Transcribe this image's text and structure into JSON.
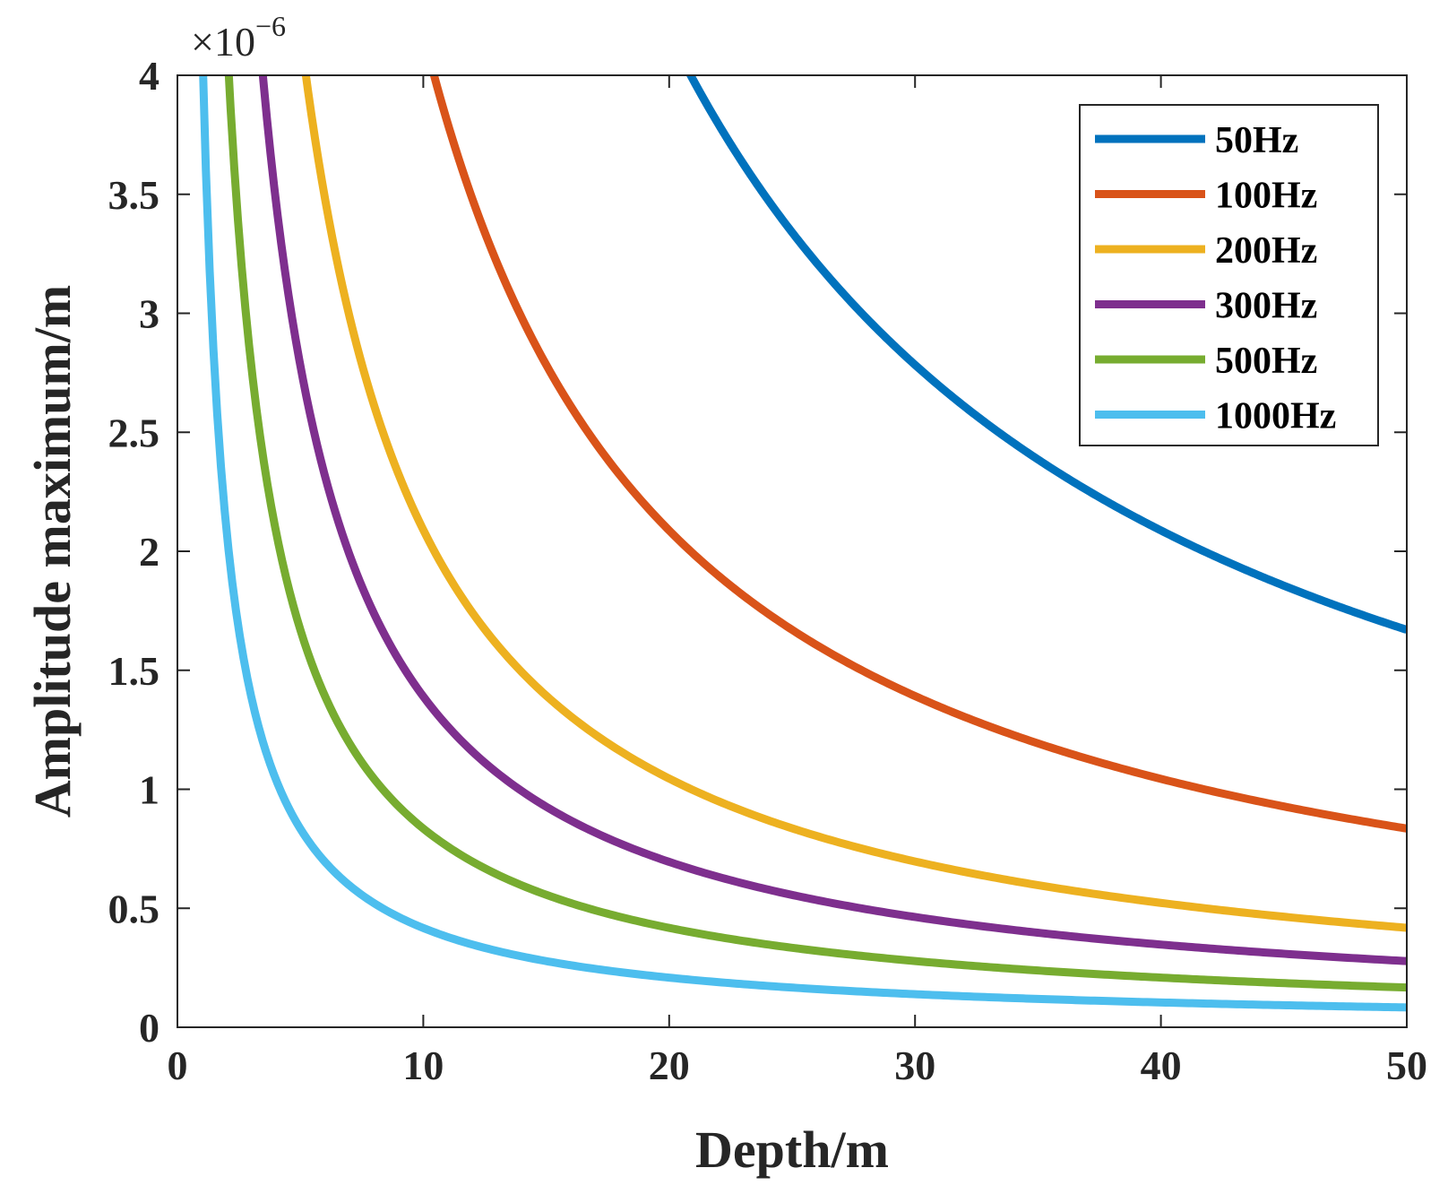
{
  "chart_data": {
    "type": "line",
    "title": "",
    "xlabel": "Depth/m",
    "ylabel": "Amplitude maximum/m",
    "xlim": [
      0,
      50
    ],
    "ylim": [
      0,
      4
    ],
    "y_multiplier_base": "×10",
    "y_multiplier_exponent": "−6",
    "x_ticks": [
      0,
      10,
      20,
      30,
      40,
      50
    ],
    "x_tick_labels": [
      "0",
      "10",
      "20",
      "30",
      "40",
      "50"
    ],
    "y_ticks": [
      0,
      0.5,
      1,
      1.5,
      2,
      2.5,
      3,
      3.5,
      4
    ],
    "y_tick_labels": [
      "0",
      "0.5",
      "1",
      "1.5",
      "2",
      "2.5",
      "3",
      "3.5",
      "4"
    ],
    "grid": false,
    "legend_position": "top-right",
    "model": "amplitude = k / depth (values in units of 1e-6 m)",
    "series": [
      {
        "name": "50Hz",
        "color": "#0072BD",
        "k": 83.5,
        "x": [
          21,
          25,
          30,
          35,
          40,
          45,
          50
        ],
        "values": [
          3.98,
          3.34,
          2.78,
          2.39,
          2.09,
          1.86,
          1.67
        ]
      },
      {
        "name": "100Hz",
        "color": "#D95319",
        "k": 41.75,
        "x": [
          10.5,
          15,
          20,
          25,
          30,
          35,
          40,
          45,
          50
        ],
        "values": [
          3.98,
          2.78,
          2.09,
          1.67,
          1.39,
          1.19,
          1.04,
          0.93,
          0.835
        ]
      },
      {
        "name": "200Hz",
        "color": "#EDB120",
        "k": 20.9,
        "x": [
          5.3,
          10,
          15,
          20,
          25,
          30,
          35,
          40,
          45,
          50
        ],
        "values": [
          3.94,
          2.09,
          1.39,
          1.05,
          0.84,
          0.7,
          0.6,
          0.52,
          0.46,
          0.42
        ]
      },
      {
        "name": "300Hz",
        "color": "#7E2F8E",
        "k": 13.9,
        "x": [
          3.5,
          5,
          10,
          15,
          20,
          25,
          30,
          35,
          40,
          45,
          50
        ],
        "values": [
          3.97,
          2.78,
          1.39,
          0.93,
          0.7,
          0.56,
          0.46,
          0.4,
          0.35,
          0.31,
          0.28
        ]
      },
      {
        "name": "500Hz",
        "color": "#77AC30",
        "k": 8.35,
        "x": [
          2.1,
          5,
          10,
          15,
          20,
          25,
          30,
          35,
          40,
          45,
          50
        ],
        "values": [
          3.98,
          1.67,
          0.835,
          0.56,
          0.42,
          0.33,
          0.28,
          0.24,
          0.21,
          0.19,
          0.167
        ]
      },
      {
        "name": "1000Hz",
        "color": "#4DBEEE",
        "k": 4.17,
        "x": [
          1.05,
          2,
          5,
          10,
          15,
          20,
          25,
          30,
          35,
          40,
          45,
          50
        ],
        "values": [
          3.97,
          2.09,
          0.83,
          0.42,
          0.28,
          0.21,
          0.17,
          0.14,
          0.12,
          0.1,
          0.09,
          0.083
        ]
      }
    ]
  }
}
